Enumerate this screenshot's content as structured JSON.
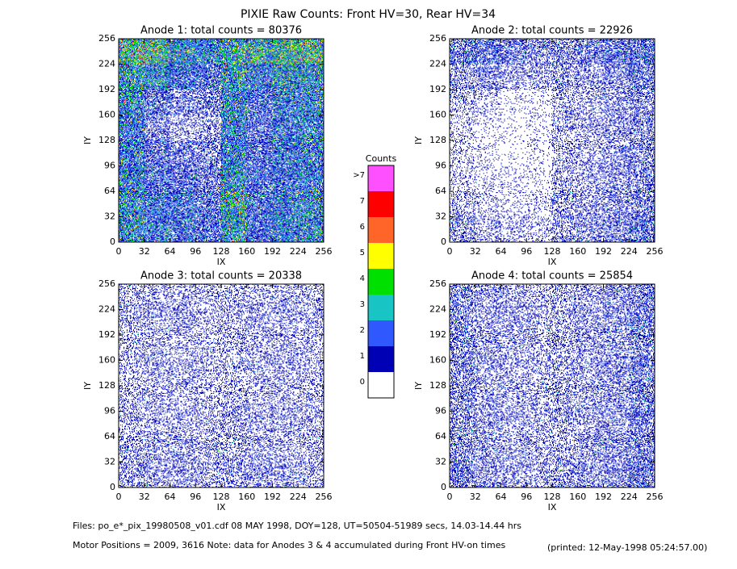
{
  "title": "PIXIE Raw Counts:  Front HV=30, Rear HV=34",
  "chart_data": [
    {
      "type": "heatmap",
      "title": "Anode 1: total counts = 80376",
      "xlabel": "IX",
      "ylabel": "IY",
      "xlim": [
        0,
        256
      ],
      "ylim": [
        0,
        256
      ],
      "xticks": [
        0,
        32,
        64,
        96,
        128,
        160,
        192,
        224,
        256
      ],
      "yticks": [
        0,
        32,
        64,
        96,
        128,
        160,
        192,
        224,
        256
      ],
      "cell_values": [
        [
          3.0,
          2.8,
          2.2,
          1.8,
          2.5,
          2.6,
          2.8,
          3.0
        ],
        [
          2.2,
          1.8,
          1.2,
          1.0,
          2.2,
          1.6,
          2.0,
          2.0
        ],
        [
          1.8,
          0.8,
          0.5,
          0.6,
          1.8,
          1.0,
          1.6,
          1.8
        ],
        [
          1.6,
          0.5,
          0.3,
          0.4,
          1.6,
          0.9,
          1.5,
          1.6
        ],
        [
          1.6,
          0.8,
          0.6,
          0.5,
          1.7,
          0.9,
          1.4,
          1.5
        ],
        [
          1.8,
          1.0,
          0.8,
          0.7,
          2.0,
          1.0,
          1.4,
          1.6
        ],
        [
          2.0,
          1.4,
          1.2,
          1.0,
          2.4,
          1.2,
          1.6,
          1.8
        ],
        [
          2.0,
          1.4,
          1.2,
          1.0,
          2.2,
          1.2,
          1.6,
          1.8
        ]
      ]
    },
    {
      "type": "heatmap",
      "title": "Anode 2: total counts = 22926",
      "xlabel": "IX",
      "ylabel": "IY",
      "xlim": [
        0,
        256
      ],
      "ylim": [
        0,
        256
      ],
      "xticks": [
        0,
        32,
        64,
        96,
        128,
        160,
        192,
        224,
        256
      ],
      "yticks": [
        0,
        32,
        64,
        96,
        128,
        160,
        192,
        224,
        256
      ],
      "cell_values": [
        [
          0.7,
          0.8,
          0.6,
          0.5,
          0.5,
          0.6,
          0.8,
          0.9
        ],
        [
          0.4,
          0.5,
          0.3,
          0.3,
          0.4,
          0.4,
          0.5,
          0.7
        ],
        [
          0.3,
          0.2,
          0.1,
          0.1,
          0.3,
          0.3,
          0.4,
          0.5
        ],
        [
          0.2,
          0.1,
          0.05,
          0.1,
          0.3,
          0.3,
          0.4,
          0.5
        ],
        [
          0.2,
          0.1,
          0.05,
          0.1,
          0.3,
          0.3,
          0.4,
          0.5
        ],
        [
          0.2,
          0.15,
          0.1,
          0.1,
          0.3,
          0.3,
          0.4,
          0.5
        ],
        [
          0.3,
          0.2,
          0.15,
          0.15,
          0.4,
          0.4,
          0.5,
          0.6
        ],
        [
          0.4,
          0.3,
          0.2,
          0.2,
          0.4,
          0.4,
          0.5,
          0.7
        ]
      ]
    },
    {
      "type": "heatmap",
      "title": "Anode 3: total counts = 20338",
      "xlabel": "IX",
      "ylabel": "IY",
      "xlim": [
        0,
        256
      ],
      "ylim": [
        0,
        256
      ],
      "xticks": [
        0,
        32,
        64,
        96,
        128,
        160,
        192,
        224,
        256
      ],
      "yticks": [
        0,
        32,
        64,
        96,
        128,
        160,
        192,
        224,
        256
      ],
      "cell_values": [
        [
          0.3,
          0.3,
          0.3,
          0.3,
          0.3,
          0.3,
          0.3,
          0.3
        ],
        [
          0.3,
          0.3,
          0.3,
          0.25,
          0.3,
          0.3,
          0.3,
          0.3
        ],
        [
          0.3,
          0.3,
          0.25,
          0.25,
          0.3,
          0.3,
          0.3,
          0.3
        ],
        [
          0.3,
          0.3,
          0.3,
          0.25,
          0.3,
          0.3,
          0.3,
          0.3
        ],
        [
          0.3,
          0.3,
          0.3,
          0.3,
          0.3,
          0.3,
          0.3,
          0.3
        ],
        [
          0.3,
          0.3,
          0.3,
          0.3,
          0.35,
          0.3,
          0.3,
          0.3
        ],
        [
          0.35,
          0.35,
          0.35,
          0.3,
          0.35,
          0.35,
          0.3,
          0.3
        ],
        [
          0.4,
          0.35,
          0.35,
          0.35,
          0.35,
          0.35,
          0.35,
          0.35
        ]
      ]
    },
    {
      "type": "heatmap",
      "title": "Anode 4: total counts = 25854",
      "xlabel": "IX",
      "ylabel": "IY",
      "xlim": [
        0,
        256
      ],
      "ylim": [
        0,
        256
      ],
      "xticks": [
        0,
        32,
        64,
        96,
        128,
        160,
        192,
        224,
        256
      ],
      "yticks": [
        0,
        32,
        64,
        96,
        128,
        160,
        192,
        224,
        256
      ],
      "cell_values": [
        [
          0.5,
          0.4,
          0.35,
          0.3,
          0.35,
          0.35,
          0.4,
          0.6
        ],
        [
          0.5,
          0.35,
          0.3,
          0.3,
          0.35,
          0.35,
          0.4,
          0.6
        ],
        [
          0.5,
          0.35,
          0.3,
          0.3,
          0.35,
          0.35,
          0.4,
          0.6
        ],
        [
          0.5,
          0.35,
          0.3,
          0.3,
          0.35,
          0.35,
          0.4,
          0.6
        ],
        [
          0.5,
          0.35,
          0.3,
          0.3,
          0.35,
          0.35,
          0.4,
          0.6
        ],
        [
          0.5,
          0.35,
          0.3,
          0.3,
          0.35,
          0.35,
          0.4,
          0.6
        ],
        [
          0.5,
          0.4,
          0.35,
          0.3,
          0.35,
          0.4,
          0.45,
          0.65
        ],
        [
          0.55,
          0.4,
          0.35,
          0.35,
          0.4,
          0.4,
          0.45,
          0.7
        ]
      ]
    }
  ],
  "colorbar": {
    "title": "Counts",
    "labels": [
      "0",
      "1",
      "2",
      "3",
      "4",
      "5",
      "6",
      "7",
      ">7"
    ],
    "colors": [
      "#ffffff",
      "#0000b4",
      "#3058ff",
      "#18c4c4",
      "#00e000",
      "#ffff00",
      "#ff6428",
      "#ff0000",
      "#ff50ff"
    ]
  },
  "footer": {
    "files": "Files: po_e*_pix_19980508_v01.cdf    08 MAY 1998, DOY=128, UT=50504-51989 secs, 14.03-14.44 hrs",
    "motor": "Motor Positions = 2009, 3616   Note: data for Anodes 3 & 4 accumulated during Front HV-on times",
    "printed": "(printed: 12-May-1998 05:24:57.00)"
  }
}
